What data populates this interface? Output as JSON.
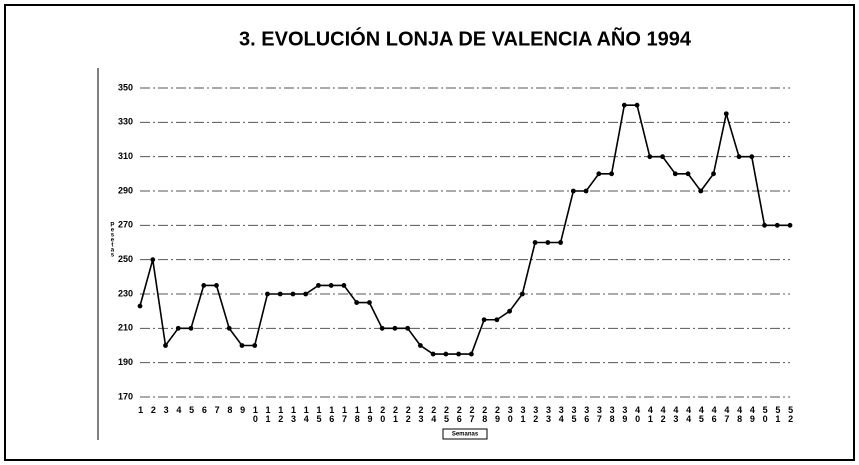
{
  "chart_data": {
    "type": "line",
    "title": "3. EVOLUCIÓN LONJA DE VALENCIA AÑO 1994",
    "y_label": "Pesetas",
    "x_label": "Semanas",
    "categories": [
      "1",
      "2",
      "3",
      "4",
      "5",
      "6",
      "7",
      "8",
      "9",
      "10",
      "11",
      "12",
      "13",
      "14",
      "15",
      "16",
      "17",
      "18",
      "19",
      "20",
      "21",
      "22",
      "23",
      "24",
      "25",
      "26",
      "27",
      "28",
      "29",
      "30",
      "31",
      "32",
      "33",
      "34",
      "35",
      "36",
      "37",
      "38",
      "39",
      "40",
      "41",
      "42",
      "43",
      "44",
      "45",
      "46",
      "47",
      "48",
      "49",
      "50",
      "51",
      "52"
    ],
    "series": [
      {
        "name": "Pesetas",
        "color": "#000000",
        "values": [
          223,
          250,
          200,
          210,
          210,
          235,
          235,
          210,
          200,
          200,
          230,
          230,
          230,
          230,
          235,
          235,
          235,
          225,
          225,
          210,
          210,
          210,
          200,
          195,
          195,
          195,
          195,
          215,
          215,
          220,
          230,
          260,
          260,
          260,
          290,
          290,
          300,
          300,
          340,
          340,
          310,
          310,
          300,
          300,
          290,
          300,
          335,
          310,
          310,
          270,
          270,
          270
        ]
      }
    ],
    "ylim": [
      170,
      350
    ],
    "yticks": [
      170,
      190,
      210,
      230,
      250,
      270,
      290,
      310,
      330,
      350
    ],
    "grid": true
  }
}
